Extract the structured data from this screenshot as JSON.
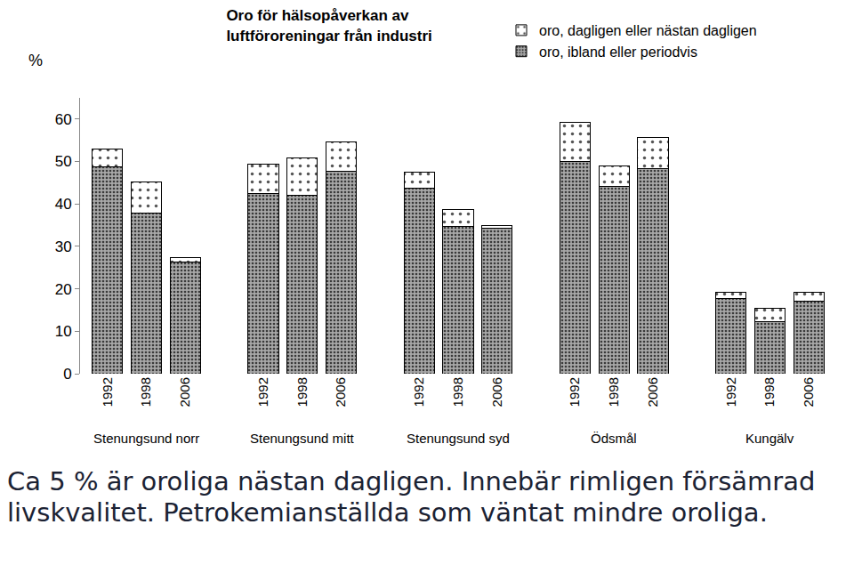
{
  "chart_data": {
    "type": "bar",
    "stacked": true,
    "title": "Oro för hälsopåverkan av\nluftföroreningar från industri",
    "ylabel": "%",
    "categories": [
      [
        "Stenungsund norr",
        "1992"
      ],
      [
        "Stenungsund norr",
        "1998"
      ],
      [
        "Stenungsund norr",
        "2006"
      ],
      [
        "Stenungsund mitt",
        "1992"
      ],
      [
        "Stenungsund mitt",
        "1998"
      ],
      [
        "Stenungsund mitt",
        "2006"
      ],
      [
        "Stenungsund syd",
        "1992"
      ],
      [
        "Stenungsund syd",
        "1998"
      ],
      [
        "Stenungsund syd",
        "2006"
      ],
      [
        "Ödsmål",
        "1992"
      ],
      [
        "Ödsmål",
        "1998"
      ],
      [
        "Ödsmål",
        "2006"
      ],
      [
        "Kungälv",
        "1992"
      ],
      [
        "Kungälv",
        "1998"
      ],
      [
        "Kungälv",
        "2006"
      ]
    ],
    "series": [
      {
        "name": "oro, ibland eller periodvis",
        "color": "#a8a8a8",
        "values": [
          48.7,
          37.8,
          26.3,
          42.4,
          42.0,
          47.8,
          43.7,
          34.6,
          34.3,
          50.0,
          44.1,
          48.3,
          17.8,
          12.2,
          17.0
        ]
      },
      {
        "name": "oro, dagligen eller nästan dagligen",
        "color": "#ffffff",
        "values": [
          4.3,
          7.4,
          1.1,
          6.9,
          8.9,
          6.8,
          3.7,
          4.1,
          0.7,
          9.3,
          4.8,
          7.4,
          1.3,
          3.2,
          2.1
        ]
      }
    ],
    "ylim": [
      0,
      65
    ],
    "yticks": [
      0,
      10,
      20,
      30,
      40,
      50,
      60
    ],
    "grid": false,
    "legend": "top right",
    "caption": "Ca 5 % är oroliga nästan dagligen. Innebär rimligen försämrad livskvalitet. Petrokemianställda som väntat mindre oroliga."
  }
}
